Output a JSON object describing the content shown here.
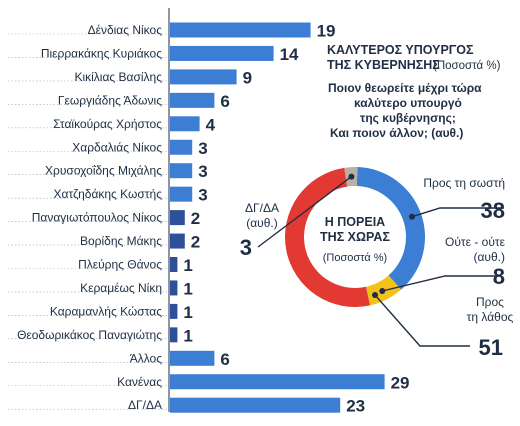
{
  "colors": {
    "bar": "#3b7ed4",
    "bar_dark": "#2e4f9a",
    "grid": "#a8acb3",
    "text": "#1f2e44",
    "donut_right": "#3b7ed4",
    "donut_wrong": "#e23a33",
    "donut_neither": "#f2c21b",
    "donut_dkna": "#b8b0a4"
  },
  "chart_data": [
    {
      "type": "bar",
      "orientation": "horizontal",
      "title": "ΚΑΛΥΤΕΡΟΣ ΥΠΟΥΡΓΟΣ ΤΗΣ ΚΥΒΕΡΝΗΣΗΣ",
      "subtitle": "(Ποσοστά %)",
      "question": [
        "Ποιον θεωρείτε μέχρι τώρα",
        "καλύτερο υπουργό",
        "της κυβέρνησης;",
        "Και ποιον άλλον; (αυθ.)"
      ],
      "categories": [
        "Δένδιας Νίκος",
        "Πιερρακάκης Κυριάκος",
        "Κικίλιας Βασίλης",
        "Γεωργιάδης Άδωνις",
        "Σταϊκούρας Χρήστος",
        "Χαρδαλιάς Νίκος",
        "Χρυσοχοΐδης Μιχάλης",
        "Χατζηδάκης Κωστής",
        "Παναγιωτόπουλος Νίκος",
        "Βορίδης Μάκης",
        "Πλεύρης Θάνος",
        "Κεραμέως Νίκη",
        "Καραμανλής Κώστας",
        "Θεοδωρικάκος Παναγιώτης",
        "Άλλος",
        "Κανένας",
        "ΔΓ/ΔΑ"
      ],
      "values": [
        19,
        14,
        9,
        6,
        4,
        3,
        3,
        3,
        2,
        2,
        1,
        1,
        1,
        1,
        6,
        29,
        23
      ]
    },
    {
      "type": "pie",
      "title": "Η ΠΟΡΕΙΑ ΤΗΣ ΧΩΡΑΣ",
      "subtitle": "(Ποσοστά %)",
      "slices": [
        {
          "label": "Προς τη σωστή",
          "value": 38,
          "color_key": "donut_right"
        },
        {
          "label": "Ούτε - ούτε (αυθ.)",
          "value": 8,
          "color_key": "donut_neither"
        },
        {
          "label": "Προς τη λάθος",
          "value": 51,
          "color_key": "donut_wrong"
        },
        {
          "label": "ΔΓ/ΔΑ (αυθ.)",
          "value": 3,
          "color_key": "donut_dkna"
        }
      ],
      "label_lines": {
        "right": [
          "Προς τη σωστή"
        ],
        "neither": [
          "Ούτε - ούτε",
          "(αυθ.)"
        ],
        "wrong": [
          "Προς",
          "τη λάθος"
        ],
        "dkna": [
          "ΔΓ/ΔΑ",
          "(αυθ.)"
        ]
      }
    }
  ]
}
